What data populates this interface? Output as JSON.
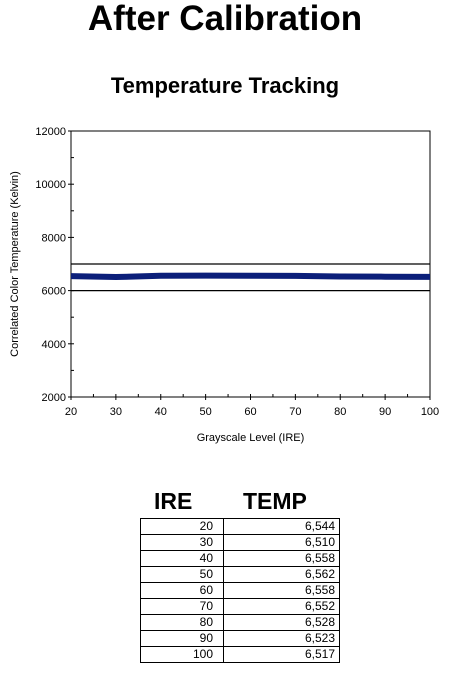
{
  "page": {
    "title": "After Calibration"
  },
  "chart_data": {
    "type": "line",
    "title": "Temperature Tracking",
    "xlabel": "Grayscale Level (IRE)",
    "ylabel": "Correlated Color Temperature (Kelvin)",
    "xlim": [
      20,
      100
    ],
    "ylim": [
      2000,
      12000
    ],
    "x_ticks": [
      20,
      30,
      40,
      50,
      60,
      70,
      80,
      90,
      100
    ],
    "y_ticks": [
      2000,
      4000,
      6000,
      8000,
      10000,
      12000
    ],
    "reference_lines": [
      6000,
      7000
    ],
    "series": [
      {
        "x": [
          20,
          30,
          40,
          50,
          60,
          70,
          80,
          90,
          100
        ],
        "values": [
          6544,
          6510,
          6558,
          6562,
          6558,
          6552,
          6528,
          6523,
          6517
        ],
        "color": "#0b1f7a"
      }
    ],
    "grid": false,
    "legend": "none"
  },
  "table": {
    "headers": [
      "IRE",
      "TEMP"
    ],
    "rows": [
      [
        "20",
        "6,544"
      ],
      [
        "30",
        "6,510"
      ],
      [
        "40",
        "6,558"
      ],
      [
        "50",
        "6,562"
      ],
      [
        "60",
        "6,558"
      ],
      [
        "70",
        "6,552"
      ],
      [
        "80",
        "6,528"
      ],
      [
        "90",
        "6,523"
      ],
      [
        "100",
        "6,517"
      ]
    ]
  }
}
